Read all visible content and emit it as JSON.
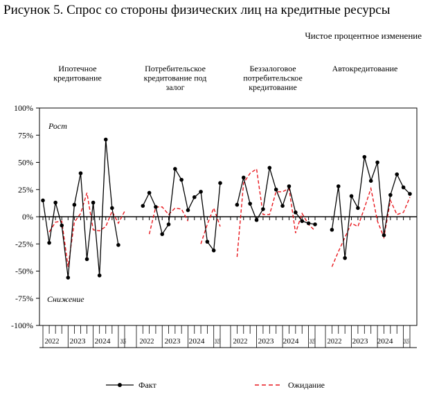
{
  "title": "Рисунок 5. Спрос со стороны физических лиц на кредитные ресурсы",
  "units_label": "Чистое процентное изменение",
  "chart_data": {
    "type": "line",
    "ylim": [
      -100,
      100
    ],
    "y_ticks": [
      "100%",
      "75%",
      "50%",
      "25%",
      "0%",
      "-25%",
      "-50%",
      "-75%",
      "-100%"
    ],
    "y_tick_values": [
      100,
      75,
      50,
      25,
      0,
      -25,
      -50,
      -75,
      -100
    ],
    "annotations": {
      "up": "Рост",
      "down": "Снижение"
    },
    "series_names": {
      "actual": "Факт",
      "expected": "Ожидание"
    },
    "legend_position": "bottom",
    "grid": false,
    "panels": [
      {
        "label_lines": [
          "Ипотечное",
          "кредитование"
        ],
        "year_labels": [
          "2022",
          "2023",
          "2024",
          "2025"
        ],
        "actual": [
          15,
          -24,
          13,
          -8,
          -56,
          11,
          40,
          -39,
          13,
          -54,
          71,
          8,
          -26,
          null
        ],
        "expected": [
          null,
          -14,
          -5,
          -4,
          -46,
          -5,
          3,
          22,
          -12,
          -13,
          -9,
          5,
          -6,
          5
        ]
      },
      {
        "label_lines": [
          "Потребительское",
          "кредитование под",
          "залог"
        ],
        "year_labels": [
          "2022",
          "2023",
          "2024",
          "2025"
        ],
        "actual": [
          null,
          10,
          22,
          9,
          -16,
          -7,
          44,
          34,
          6,
          18,
          23,
          -23,
          -31,
          31
        ],
        "expected": [
          null,
          null,
          -16,
          9,
          9,
          2,
          8,
          7,
          -4,
          null,
          -25,
          -7,
          8,
          -9
        ]
      },
      {
        "label_lines": [
          "Беззалоговое",
          "потребительское",
          "кредитование"
        ],
        "year_labels": [
          "2022",
          "2023",
          "2024",
          "2025"
        ],
        "actual": [
          null,
          11,
          36,
          12,
          -3,
          7,
          45,
          25,
          10,
          28,
          4,
          -4,
          -6,
          -7
        ],
        "expected": [
          null,
          -37,
          31,
          40,
          44,
          2,
          2,
          23,
          23,
          26,
          -15,
          3,
          -7,
          -13
        ]
      },
      {
        "label_lines": [
          "Автокредитование"
        ],
        "year_labels": [
          "2022",
          "2023",
          "2024",
          "2025"
        ],
        "actual": [
          null,
          -12,
          28,
          -38,
          19,
          8,
          55,
          33,
          50,
          -17,
          20,
          39,
          27,
          21
        ],
        "expected": [
          null,
          -46,
          -32,
          -19,
          -6,
          -9,
          8,
          26,
          -4,
          -19,
          15,
          2,
          4,
          18
        ]
      }
    ]
  }
}
